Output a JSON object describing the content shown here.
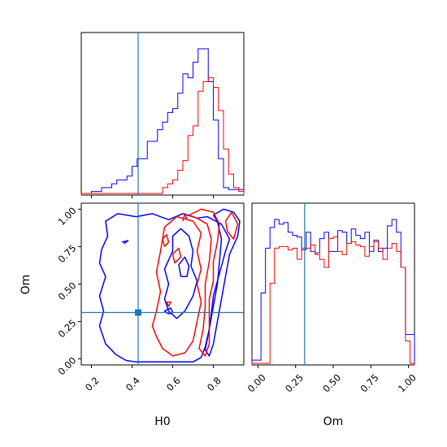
{
  "chart_data": {
    "type": "corner",
    "parameters": [
      "H0",
      "Om"
    ],
    "truths": {
      "H0": 0.43,
      "Om": 0.31
    },
    "colors": {
      "series_a": "#0000ff",
      "series_b": "#ff0000",
      "truth": "#1f77b4"
    },
    "axes": {
      "H0": {
        "range": [
          0.15,
          0.95
        ],
        "ticks": [
          0.2,
          0.4,
          0.6,
          0.8
        ],
        "tick_labels": [
          "0.2",
          "0.4",
          "0.6",
          "0.8"
        ],
        "xlabel": "H0"
      },
      "Om": {
        "range": [
          -0.04,
          1.04
        ],
        "ticks": [
          0.0,
          0.25,
          0.5,
          0.75,
          1.0
        ],
        "tick_labels": [
          "0.00",
          "0.25",
          "0.50",
          "0.75",
          "1.00"
        ],
        "xlabel": "Om",
        "ylabel": "Om"
      }
    },
    "hist_H0": {
      "range": [
        0.15,
        0.95
      ],
      "blue": [
        0,
        0,
        1,
        1,
        3,
        3,
        5,
        7,
        7,
        9,
        14,
        18,
        18,
        27,
        27,
        33,
        37,
        42,
        44,
        52,
        62,
        60,
        68,
        75,
        75,
        58,
        38,
        18,
        3,
        2,
        2,
        2
      ],
      "red": [
        0,
        0,
        0,
        0,
        0,
        0,
        0,
        0,
        0,
        0,
        0,
        0,
        0,
        0,
        0,
        0,
        3,
        5,
        7,
        12,
        17,
        30,
        35,
        53,
        58,
        60,
        55,
        43,
        23,
        10,
        3,
        1
      ]
    },
    "hist_Om": {
      "range": [
        -0.04,
        1.04
      ],
      "blue": [
        2,
        2,
        44,
        72,
        85,
        90,
        87,
        88,
        82,
        80,
        79,
        71,
        82,
        70,
        69,
        78,
        82,
        70,
        70,
        83,
        82,
        75,
        84,
        80,
        78,
        82,
        70,
        77,
        70,
        72,
        86,
        90,
        82,
        60,
        18,
        18
      ],
      "red": [
        0,
        0,
        0,
        0,
        50,
        72,
        73,
        73,
        71,
        72,
        65,
        72,
        72,
        74,
        68,
        65,
        60,
        78,
        79,
        70,
        68,
        75,
        76,
        74,
        73,
        67,
        73,
        76,
        72,
        65,
        72,
        75,
        70,
        60,
        14,
        0
      ]
    },
    "contours_2d": {
      "blue": [
        [
          [
            0.37,
            -0.01
          ],
          [
            0.32,
            0.03
          ],
          [
            0.27,
            0.1
          ],
          [
            0.24,
            0.22
          ],
          [
            0.26,
            0.32
          ],
          [
            0.24,
            0.42
          ],
          [
            0.27,
            0.55
          ],
          [
            0.24,
            0.64
          ],
          [
            0.25,
            0.73
          ],
          [
            0.28,
            0.82
          ],
          [
            0.27,
            0.92
          ],
          [
            0.33,
            0.97
          ],
          [
            0.42,
            0.95
          ],
          [
            0.5,
            0.97
          ],
          [
            0.58,
            0.93
          ],
          [
            0.65,
            0.97
          ],
          [
            0.72,
            0.94
          ],
          [
            0.77,
            0.95
          ],
          [
            0.84,
            0.9
          ],
          [
            0.88,
            0.8
          ],
          [
            0.86,
            0.72
          ],
          [
            0.84,
            0.62
          ],
          [
            0.82,
            0.52
          ],
          [
            0.8,
            0.42
          ],
          [
            0.79,
            0.3
          ],
          [
            0.78,
            0.2
          ],
          [
            0.76,
            0.08
          ],
          [
            0.74,
            0.01
          ],
          [
            0.7,
            -0.02
          ],
          [
            0.6,
            -0.02
          ],
          [
            0.5,
            -0.02
          ],
          [
            0.42,
            -0.02
          ],
          [
            0.37,
            -0.01
          ]
        ],
        [
          [
            0.58,
            0.32
          ],
          [
            0.56,
            0.4
          ],
          [
            0.58,
            0.5
          ],
          [
            0.56,
            0.6
          ],
          [
            0.6,
            0.72
          ],
          [
            0.6,
            0.82
          ],
          [
            0.64,
            0.87
          ],
          [
            0.68,
            0.82
          ],
          [
            0.7,
            0.72
          ],
          [
            0.69,
            0.62
          ],
          [
            0.72,
            0.52
          ],
          [
            0.7,
            0.42
          ],
          [
            0.66,
            0.32
          ],
          [
            0.62,
            0.27
          ],
          [
            0.58,
            0.32
          ]
        ],
        [
          [
            0.64,
            0.55
          ],
          [
            0.63,
            0.63
          ],
          [
            0.66,
            0.68
          ],
          [
            0.68,
            0.62
          ],
          [
            0.67,
            0.55
          ],
          [
            0.64,
            0.55
          ]
        ],
        [
          [
            0.8,
            0.96
          ],
          [
            0.85,
            1.0
          ],
          [
            0.9,
            0.98
          ],
          [
            0.93,
            0.92
          ],
          [
            0.92,
            0.82
          ],
          [
            0.88,
            0.7
          ],
          [
            0.86,
            0.55
          ],
          [
            0.84,
            0.4
          ],
          [
            0.82,
            0.25
          ],
          [
            0.8,
            0.1
          ],
          [
            0.78,
            0.02
          ],
          [
            0.76,
            0.06
          ],
          [
            0.78,
            0.2
          ],
          [
            0.8,
            0.35
          ],
          [
            0.82,
            0.5
          ],
          [
            0.83,
            0.65
          ],
          [
            0.84,
            0.8
          ],
          [
            0.82,
            0.92
          ],
          [
            0.8,
            0.96
          ]
        ],
        [
          [
            0.58,
            0.3
          ],
          [
            0.56,
            0.32
          ],
          [
            0.59,
            0.34
          ],
          [
            0.6,
            0.31
          ],
          [
            0.58,
            0.3
          ]
        ],
        [
          [
            0.35,
            0.78
          ],
          [
            0.38,
            0.79
          ],
          [
            0.36,
            0.77
          ]
        ]
      ],
      "red": [
        [
          [
            0.52,
            0.15
          ],
          [
            0.5,
            0.22
          ],
          [
            0.52,
            0.32
          ],
          [
            0.54,
            0.45
          ],
          [
            0.52,
            0.58
          ],
          [
            0.54,
            0.72
          ],
          [
            0.56,
            0.88
          ],
          [
            0.62,
            0.95
          ],
          [
            0.7,
            0.92
          ],
          [
            0.74,
            0.84
          ],
          [
            0.72,
            0.72
          ],
          [
            0.74,
            0.6
          ],
          [
            0.72,
            0.5
          ],
          [
            0.74,
            0.38
          ],
          [
            0.72,
            0.25
          ],
          [
            0.7,
            0.12
          ],
          [
            0.66,
            0.04
          ],
          [
            0.6,
            0.02
          ],
          [
            0.55,
            0.07
          ],
          [
            0.52,
            0.15
          ]
        ],
        [
          [
            0.68,
            0.96
          ],
          [
            0.74,
            1.0
          ],
          [
            0.8,
            0.98
          ],
          [
            0.83,
            0.9
          ],
          [
            0.82,
            0.78
          ],
          [
            0.8,
            0.65
          ],
          [
            0.8,
            0.52
          ],
          [
            0.78,
            0.4
          ],
          [
            0.78,
            0.25
          ],
          [
            0.78,
            0.1
          ],
          [
            0.76,
            0.02
          ],
          [
            0.73,
            0.07
          ],
          [
            0.75,
            0.2
          ],
          [
            0.76,
            0.35
          ],
          [
            0.76,
            0.5
          ],
          [
            0.78,
            0.65
          ],
          [
            0.79,
            0.8
          ],
          [
            0.77,
            0.9
          ],
          [
            0.72,
            0.94
          ],
          [
            0.68,
            0.96
          ]
        ],
        [
          [
            0.86,
            0.92
          ],
          [
            0.89,
            0.98
          ],
          [
            0.92,
            0.9
          ],
          [
            0.9,
            0.8
          ],
          [
            0.87,
            0.85
          ],
          [
            0.86,
            0.92
          ]
        ],
        [
          [
            0.61,
            0.64
          ],
          [
            0.6,
            0.7
          ],
          [
            0.63,
            0.74
          ],
          [
            0.64,
            0.68
          ],
          [
            0.61,
            0.64
          ]
        ],
        [
          [
            0.56,
            0.75
          ],
          [
            0.55,
            0.8
          ],
          [
            0.57,
            0.83
          ],
          [
            0.58,
            0.78
          ],
          [
            0.56,
            0.75
          ]
        ],
        [
          [
            0.65,
            0.92
          ],
          [
            0.66,
            0.97
          ],
          [
            0.67,
            0.93
          ]
        ],
        [
          [
            0.58,
            0.35
          ],
          [
            0.57,
            0.38
          ],
          [
            0.59,
            0.38
          ],
          [
            0.58,
            0.35
          ]
        ]
      ]
    }
  }
}
